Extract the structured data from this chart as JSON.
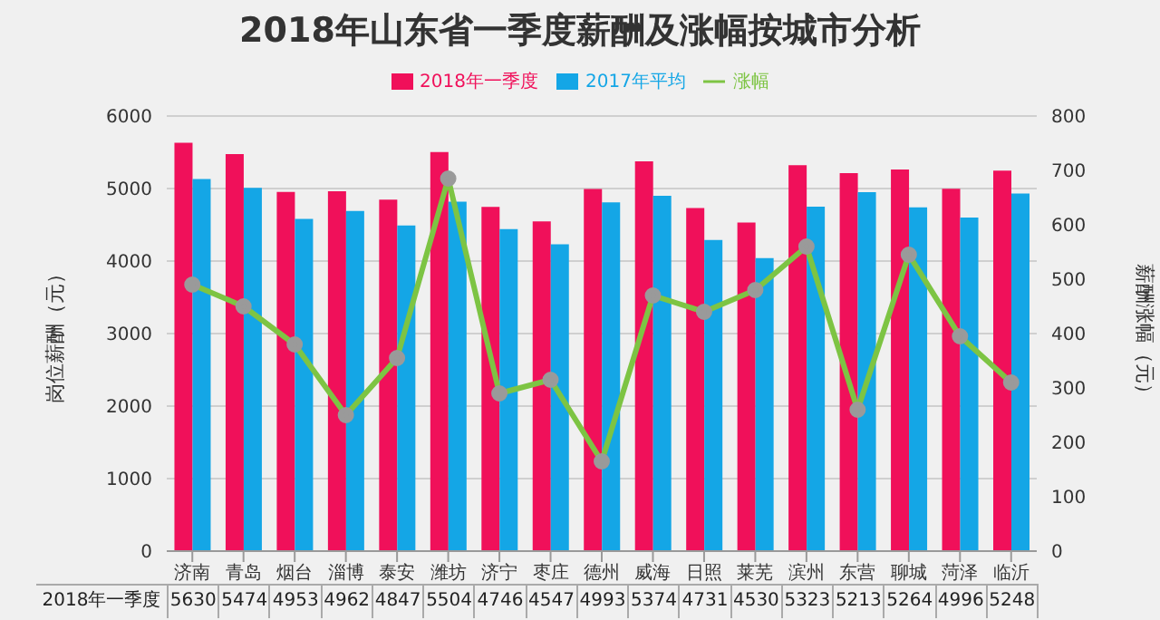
{
  "chart_data": {
    "type": "bar",
    "title": "2018年山东省一季度薪酬及涨幅按城市分析",
    "ylabel": "岗位薪酬（元）",
    "y2label": "薪酬涨幅（元）",
    "categories": [
      "济南",
      "青岛",
      "烟台",
      "淄博",
      "泰安",
      "潍坊",
      "济宁",
      "枣庄",
      "德州",
      "威海",
      "日照",
      "莱芜",
      "滨州",
      "东营",
      "聊城",
      "菏泽",
      "临沂"
    ],
    "series": [
      {
        "name": "2018年一季度",
        "color": "#f0105a",
        "values": [
          5630,
          5474,
          4953,
          4962,
          4847,
          5504,
          4746,
          4547,
          4993,
          5374,
          4731,
          4530,
          5323,
          5213,
          5264,
          4996,
          5248
        ],
        "value_labels": [
          "5630",
          "5474",
          "4953",
          "4962",
          "4847",
          "5504",
          "4746",
          "4547",
          "4993",
          "5374",
          "4731",
          "4530",
          "5323",
          "5213",
          "5264",
          "4996",
          "5248"
        ]
      },
      {
        "name": "2017年平均",
        "color": "#14a6e6",
        "values": [
          5130,
          5010,
          4580,
          4690,
          4490,
          4820,
          4440,
          4230,
          4810,
          4900,
          4290,
          4040,
          4750,
          4950,
          4740,
          4600,
          4930
        ]
      },
      {
        "name": "涨幅",
        "type": "line",
        "axis": "y2",
        "color": "#7dc443",
        "values": [
          490,
          450,
          380,
          250,
          355,
          685,
          290,
          315,
          165,
          470,
          440,
          480,
          560,
          260,
          545,
          395,
          310
        ]
      }
    ],
    "ylim": [
      0,
      6000
    ],
    "yticks": [
      0,
      1000,
      2000,
      3000,
      4000,
      5000,
      6000
    ],
    "y2lim": [
      0,
      800
    ],
    "y2ticks": [
      0,
      100,
      200,
      300,
      400,
      500,
      600,
      700,
      800
    ],
    "grid": "y",
    "legend": "top",
    "marker": "circle"
  }
}
